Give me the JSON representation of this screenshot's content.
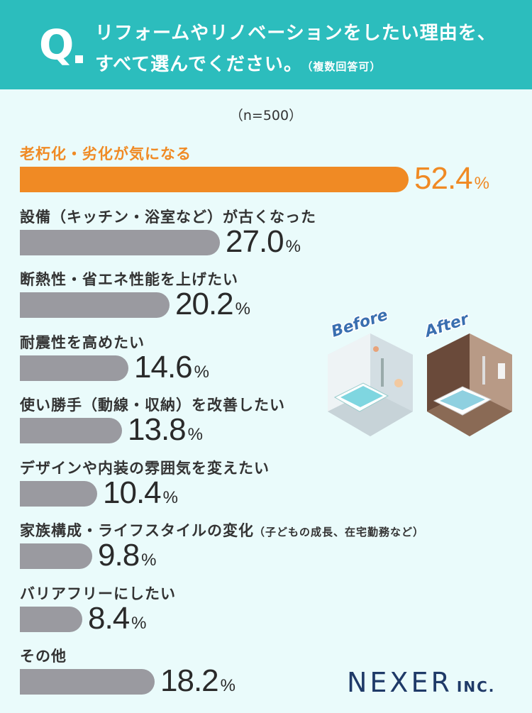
{
  "header": {
    "q_letter": "Q",
    "question_line1": "リフォームやリノベーションをしたい理由を、",
    "question_line2": "すべて選んでください。",
    "question_note": "（複数回答可）"
  },
  "chart_data": {
    "type": "bar",
    "orientation": "horizontal",
    "sample_label": "（n=500）",
    "categories": [
      "老朽化・劣化が気になる",
      "設備（キッチン・浴室など）が古くなった",
      "断熱性・省エネ性能を上げたい",
      "耐震性を高めたい",
      "使い勝手（動線・収納）を改善したい",
      "デザインや内装の雰囲気を変えたい",
      "家族構成・ライフスタイルの変化",
      "バリアフリーにしたい",
      "その他"
    ],
    "category_notes": [
      "",
      "",
      "",
      "",
      "",
      "",
      "（子どもの成長、在宅勤務など）",
      "",
      ""
    ],
    "values": [
      52.4,
      27.0,
      20.2,
      14.6,
      13.8,
      10.4,
      9.8,
      8.4,
      18.2
    ],
    "value_labels": [
      "52.4",
      "27.0",
      "20.2",
      "14.6",
      "13.8",
      "10.4",
      "9.8",
      "8.4",
      "18.2"
    ],
    "unit": "%",
    "highlight_index": 0,
    "colors": {
      "highlight": "#f08a24",
      "default": "#9a9aa0",
      "header": "#2cbdbd",
      "background": "#eafbfb"
    }
  },
  "illustration": {
    "before_label": "Before",
    "after_label": "After"
  },
  "brand": {
    "name": "NEXER",
    "suffix": "INC."
  }
}
